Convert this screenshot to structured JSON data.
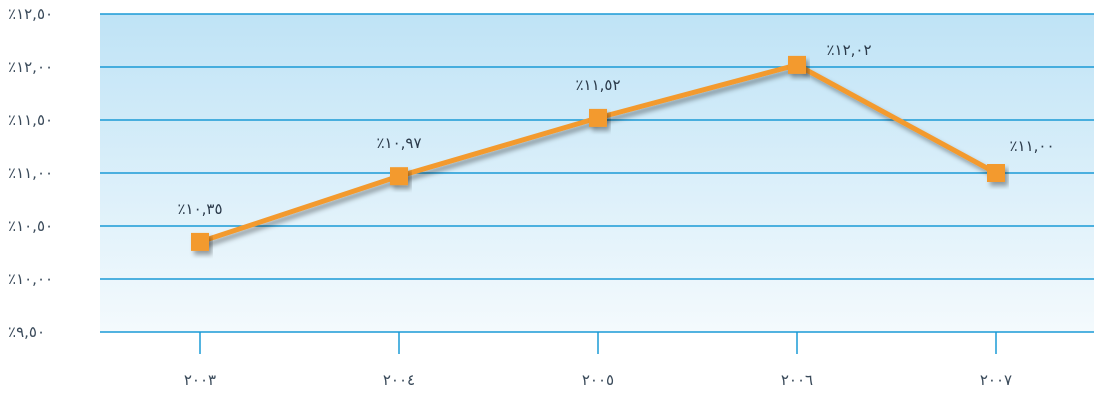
{
  "chart_data": {
    "type": "line",
    "categories": [
      "٢٠٠٣",
      "٢٠٠٤",
      "٢٠٠٥",
      "٢٠٠٦",
      "٢٠٠٧"
    ],
    "series": [
      {
        "values": [
          10.35,
          10.97,
          11.52,
          12.02,
          11.0
        ],
        "labels": [
          "٪١٠,٣٥",
          "٪١٠,٩٧",
          "٪١١,٥٢",
          "٪١٢,٠٢",
          "٪١١,٠٠"
        ]
      }
    ],
    "yticks": [
      {
        "value": 9.5,
        "label": "٪٩,٥٠"
      },
      {
        "value": 10.0,
        "label": "٪١٠,٠٠"
      },
      {
        "value": 10.5,
        "label": "٪١٠,٥٠"
      },
      {
        "value": 11.0,
        "label": "٪١١,٠٠"
      },
      {
        "value": 11.5,
        "label": "٪١١,٥٠"
      },
      {
        "value": 12.0,
        "label": "٪١٢,٠٠"
      },
      {
        "value": 12.5,
        "label": "٪١٢,٥٠"
      }
    ],
    "ylim": [
      9.5,
      12.5
    ],
    "grid": true,
    "colors": {
      "line": "#f39a2e",
      "marker": "#f39a2e",
      "grid": "#1a9ad6",
      "background_top": "#bfe3f6",
      "background_bottom": "#f4fafd"
    }
  }
}
